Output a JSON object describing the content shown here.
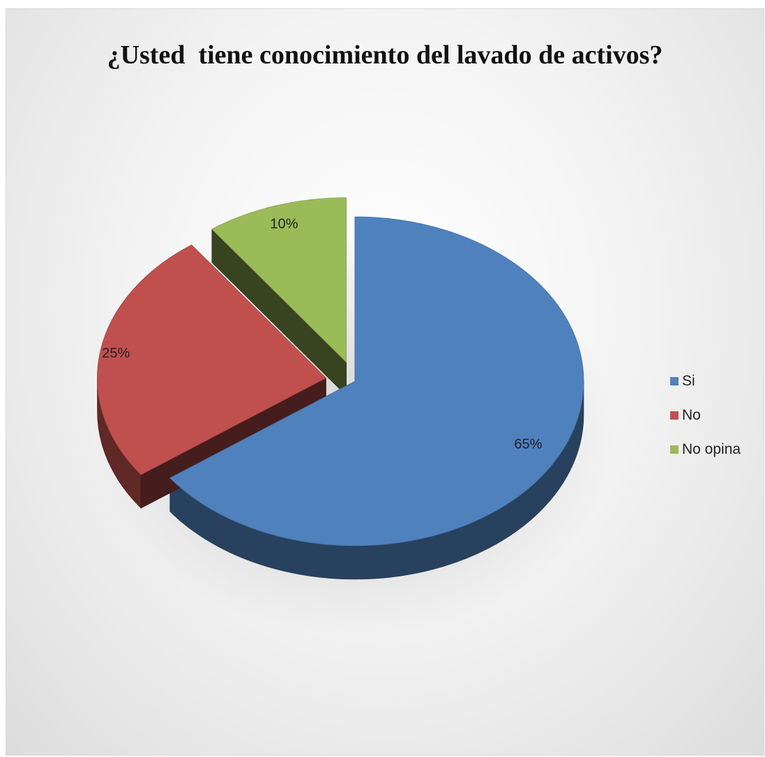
{
  "chart_data": {
    "type": "pie",
    "title": "¿Usted  tiene conocimiento del lavado de activos?",
    "categories": [
      "Si",
      "No",
      "No opina"
    ],
    "values": [
      65,
      25,
      10
    ],
    "data_labels": [
      "65%",
      "25%",
      "10%"
    ],
    "colors": [
      "#4f81bd",
      "#c0504d",
      "#9bbb59"
    ],
    "style": "3d-exploded",
    "legend_position": "right"
  }
}
